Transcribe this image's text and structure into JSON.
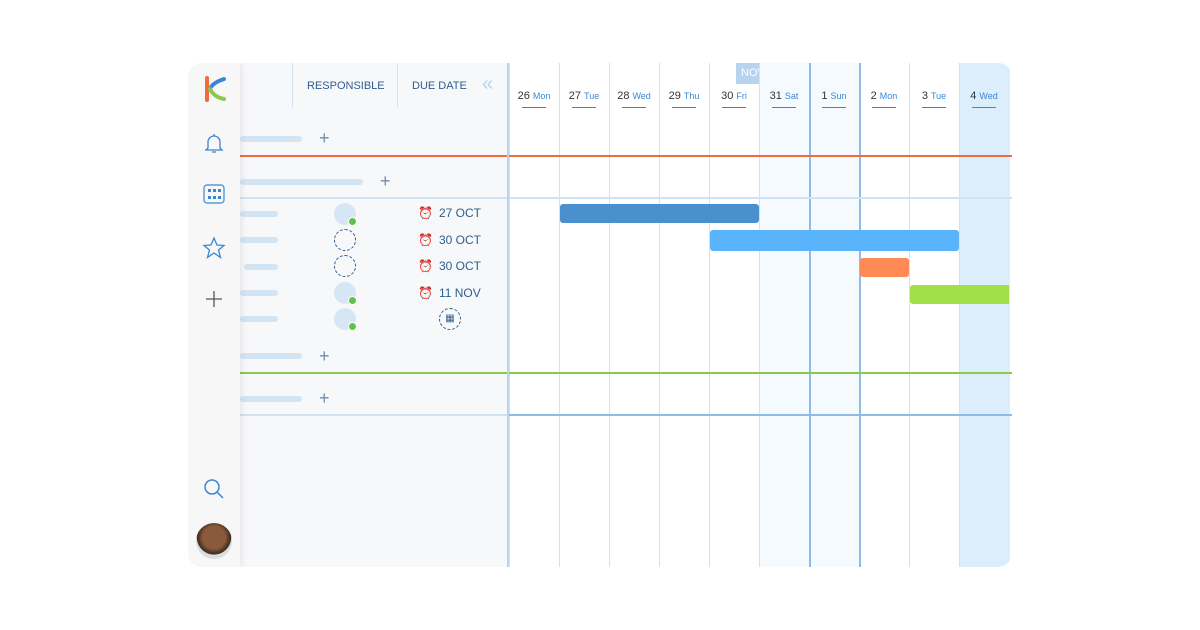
{
  "header": {
    "responsible": "RESPONSIBLE",
    "due_date": "DUE DATE",
    "month": "NOVEMBER"
  },
  "days": [
    {
      "num": "26",
      "dow": "Mon"
    },
    {
      "num": "27",
      "dow": "Tue"
    },
    {
      "num": "28",
      "dow": "Wed"
    },
    {
      "num": "29",
      "dow": "Thu"
    },
    {
      "num": "30",
      "dow": "Fri"
    },
    {
      "num": "31",
      "dow": "Sat"
    },
    {
      "num": "1",
      "dow": "Sun"
    },
    {
      "num": "2",
      "dow": "Mon"
    },
    {
      "num": "3",
      "dow": "Tue"
    },
    {
      "num": "4",
      "dow": "Wed"
    }
  ],
  "tasks": [
    {
      "due": "27 OCT",
      "assigned": true,
      "bar": {
        "start_day": "27",
        "end_day": "30",
        "color": "#4a90cf"
      }
    },
    {
      "due": "30 OCT",
      "assigned": false,
      "bar": {
        "start_day": "30",
        "end_day": "3",
        "color": "#5ab4fb"
      }
    },
    {
      "due": "30 OCT",
      "assigned": false,
      "bar": {
        "start_day": "2",
        "end_day": "2",
        "color": "#fe8a55"
      }
    },
    {
      "due": "11 NOV",
      "assigned": true,
      "bar": {
        "start_day": "3",
        "end_day": "4",
        "color": "#a2e04a"
      }
    },
    {
      "due": "",
      "assigned": true,
      "bar": null
    }
  ],
  "colors": {
    "accent": "#3a86d4",
    "group_red": "#f26b3a",
    "group_green": "#8cc84b"
  }
}
